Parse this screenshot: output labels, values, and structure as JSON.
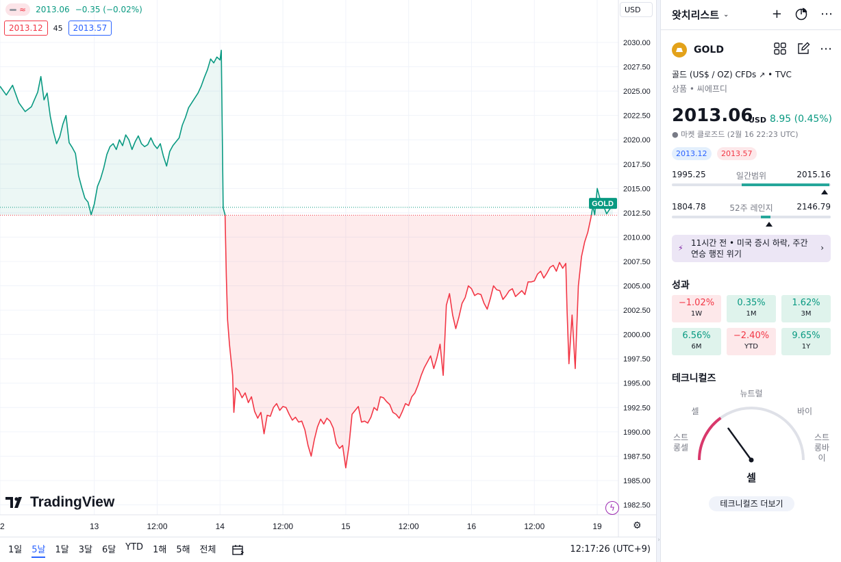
{
  "legend": {
    "price": "2013.06",
    "change": "−0.35 (−0.02%)",
    "bid": "2013.12",
    "spread": "45",
    "ask": "2013.57"
  },
  "currency_button": {
    "label": "USD"
  },
  "price_axis_tag": "GOLD",
  "logo_text": "TradingView",
  "bottom_bar": {
    "ranges": [
      "1일",
      "5날",
      "1달",
      "3달",
      "6달",
      "YTD",
      "1해",
      "5해",
      "전체"
    ],
    "active_range": "5날",
    "clock": "12:17:26 (UTC+9)"
  },
  "watchlist": {
    "title": "왓치리스트",
    "symbol": "GOLD",
    "description": "골드 (US$ / OZ) CFDs",
    "source": "TVC",
    "category": "상품 • 씨에프디",
    "price": "2013.06",
    "price_currency": "USD",
    "price_change": "8.95 (0.45%)",
    "market_status": "● 마켓 클로즈드 (2월 16 22:23 UTC)",
    "bid_badge": "2013.12",
    "ask_badge": "2013.57",
    "day_range": {
      "low": "1995.25",
      "label": "일간범위",
      "high": "2015.16",
      "fill_from": 0.44,
      "fill_to": 0.99,
      "marker": 0.96
    },
    "week52_range": {
      "low": "1804.78",
      "label": "52주 레인지",
      "high": "2146.79",
      "fill_from": 0.56,
      "fill_to": 0.62,
      "marker": 0.61
    },
    "news": "11시간 전 • 미국 증시 하락, 주간 연승 행진 위기",
    "performance_title": "성과",
    "performance": [
      {
        "value": "−1.02%",
        "label": "1W",
        "sign": "neg"
      },
      {
        "value": "0.35%",
        "label": "1M",
        "sign": "pos"
      },
      {
        "value": "1.62%",
        "label": "3M",
        "sign": "pos"
      },
      {
        "value": "6.56%",
        "label": "6M",
        "sign": "pos"
      },
      {
        "value": "−2.40%",
        "label": "YTD",
        "sign": "neg"
      },
      {
        "value": "9.65%",
        "label": "1Y",
        "sign": "pos"
      }
    ],
    "technicals_title": "테크니컬즈",
    "gauge": {
      "neutral": "뉴트럴",
      "sell": "셀",
      "buy": "바이",
      "strong_sell": "스트롱셀",
      "strong_buy": "스트롱바이",
      "result": "셀",
      "needle_level": 0.3
    },
    "more_button": "테크니컬즈 더보기"
  },
  "chart_data": {
    "type": "area",
    "symbol": "GOLD",
    "baseline": 2012.25,
    "last_price": 2013.06,
    "ylim": [
      1981.5,
      2032.5
    ],
    "y_ticks": [
      "2030.00",
      "2027.50",
      "2025.00",
      "2022.50",
      "2020.00",
      "2017.50",
      "2015.00",
      "2012.50",
      "2010.00",
      "2007.50",
      "2005.00",
      "2002.50",
      "2000.00",
      "1997.50",
      "1995.00",
      "1992.50",
      "1990.00",
      "1987.50",
      "1985.00",
      "1982.50"
    ],
    "x_ticks": [
      "2",
      "13",
      "12:00",
      "14",
      "12:00",
      "15",
      "12:00",
      "16",
      "12:00",
      "19"
    ],
    "x_tick_index": [
      -0.5,
      1.0,
      2.0,
      3.0,
      4.0,
      5.0,
      6.0,
      7.0,
      8.0,
      9.0
    ],
    "x_range": [
      -0.5,
      9.3
    ],
    "series": [
      {
        "points": [
          [
            -0.5,
            2025.5
          ],
          [
            -0.4,
            2024.6
          ],
          [
            -0.3,
            2025.6
          ],
          [
            -0.2,
            2023.8
          ],
          [
            -0.1,
            2022.9
          ],
          [
            0.0,
            2023.4
          ],
          [
            0.1,
            2024.9
          ],
          [
            0.15,
            2026.5
          ],
          [
            0.2,
            2024.1
          ],
          [
            0.25,
            2024.8
          ],
          [
            0.3,
            2022.4
          ],
          [
            0.35,
            2020.8
          ],
          [
            0.4,
            2019.6
          ],
          [
            0.45,
            2020.3
          ],
          [
            0.5,
            2021.6
          ],
          [
            0.55,
            2022.5
          ],
          [
            0.6,
            2019.7
          ],
          [
            0.65,
            2019.2
          ],
          [
            0.7,
            2018.6
          ],
          [
            0.75,
            2016.3
          ],
          [
            0.8,
            2015.1
          ],
          [
            0.85,
            2014.0
          ],
          [
            0.9,
            2013.6
          ],
          [
            0.95,
            2012.3
          ],
          [
            1.0,
            2013.4
          ],
          [
            1.05,
            2015.2
          ],
          [
            1.1,
            2016.0
          ],
          [
            1.15,
            2017.1
          ],
          [
            1.2,
            2018.5
          ],
          [
            1.25,
            2019.3
          ],
          [
            1.3,
            2019.6
          ],
          [
            1.35,
            2019.0
          ],
          [
            1.4,
            2020.0
          ],
          [
            1.45,
            2019.4
          ],
          [
            1.5,
            2020.5
          ],
          [
            1.55,
            2020.0
          ],
          [
            1.6,
            2019.0
          ],
          [
            1.65,
            2019.8
          ],
          [
            1.7,
            2020.4
          ],
          [
            1.75,
            2019.6
          ],
          [
            1.8,
            2019.3
          ],
          [
            1.85,
            2019.5
          ],
          [
            1.9,
            2020.2
          ],
          [
            1.95,
            2019.5
          ],
          [
            2.0,
            2019.1
          ],
          [
            2.05,
            2019.6
          ],
          [
            2.1,
            2018.3
          ],
          [
            2.15,
            2017.3
          ],
          [
            2.2,
            2018.8
          ],
          [
            2.25,
            2019.4
          ],
          [
            2.3,
            2019.8
          ],
          [
            2.35,
            2020.2
          ],
          [
            2.4,
            2021.5
          ],
          [
            2.45,
            2022.3
          ],
          [
            2.5,
            2023.3
          ],
          [
            2.55,
            2023.8
          ],
          [
            2.6,
            2024.3
          ],
          [
            2.65,
            2024.8
          ],
          [
            2.7,
            2025.5
          ],
          [
            2.75,
            2026.4
          ],
          [
            2.8,
            2027.2
          ],
          [
            2.85,
            2028.3
          ],
          [
            2.9,
            2027.9
          ],
          [
            2.95,
            2028.5
          ],
          [
            3.0,
            2028.2
          ],
          [
            3.02,
            2029.2
          ],
          [
            3.05,
            2013.0
          ],
          [
            3.08,
            2012.3
          ],
          [
            3.1,
            2006.0
          ],
          [
            3.12,
            2001.5
          ],
          [
            3.15,
            1999.0
          ],
          [
            3.2,
            1995.8
          ],
          [
            3.22,
            1992.0
          ],
          [
            3.25,
            1994.5
          ],
          [
            3.3,
            1994.2
          ],
          [
            3.35,
            1993.5
          ],
          [
            3.4,
            1994.0
          ],
          [
            3.45,
            1993.0
          ],
          [
            3.5,
            1993.6
          ],
          [
            3.55,
            1992.1
          ],
          [
            3.6,
            1991.4
          ],
          [
            3.65,
            1992.0
          ],
          [
            3.7,
            1989.8
          ],
          [
            3.75,
            1991.7
          ],
          [
            3.8,
            1991.6
          ],
          [
            3.85,
            1992.5
          ],
          [
            3.9,
            1992.9
          ],
          [
            3.95,
            1992.2
          ],
          [
            4.0,
            1992.6
          ],
          [
            4.05,
            1992.5
          ],
          [
            4.1,
            1991.8
          ],
          [
            4.15,
            1991.2
          ],
          [
            4.2,
            1991.5
          ],
          [
            4.25,
            1991.0
          ],
          [
            4.3,
            1991.1
          ],
          [
            4.35,
            1990.2
          ],
          [
            4.4,
            1988.6
          ],
          [
            4.45,
            1987.5
          ],
          [
            4.5,
            1989.2
          ],
          [
            4.55,
            1990.5
          ],
          [
            4.6,
            1991.3
          ],
          [
            4.65,
            1990.8
          ],
          [
            4.7,
            1991.4
          ],
          [
            4.75,
            1991.1
          ],
          [
            4.8,
            1990.4
          ],
          [
            4.85,
            1988.8
          ],
          [
            4.9,
            1988.3
          ],
          [
            4.95,
            1988.6
          ],
          [
            5.0,
            1986.3
          ],
          [
            5.05,
            1988.5
          ],
          [
            5.1,
            1991.8
          ],
          [
            5.15,
            1992.2
          ],
          [
            5.2,
            1992.6
          ],
          [
            5.25,
            1991.0
          ],
          [
            5.3,
            1991.1
          ],
          [
            5.35,
            1990.9
          ],
          [
            5.4,
            1991.5
          ],
          [
            5.45,
            1992.5
          ],
          [
            5.5,
            1992.2
          ],
          [
            5.55,
            1993.6
          ],
          [
            5.6,
            1993.5
          ],
          [
            5.65,
            1993.1
          ],
          [
            5.7,
            1992.8
          ],
          [
            5.75,
            1992.0
          ],
          [
            5.8,
            1991.8
          ],
          [
            5.85,
            1991.4
          ],
          [
            5.9,
            1992.1
          ],
          [
            5.95,
            1992.9
          ],
          [
            6.0,
            1992.7
          ],
          [
            6.05,
            1993.6
          ],
          [
            6.1,
            1994.0
          ],
          [
            6.15,
            1994.8
          ],
          [
            6.2,
            1995.8
          ],
          [
            6.25,
            1996.6
          ],
          [
            6.3,
            1997.2
          ],
          [
            6.35,
            1997.8
          ],
          [
            6.4,
            1996.5
          ],
          [
            6.45,
            1997.6
          ],
          [
            6.5,
            1999.0
          ],
          [
            6.55,
            1995.8
          ],
          [
            6.6,
            2003.0
          ],
          [
            6.65,
            2004.2
          ],
          [
            6.7,
            2002.0
          ],
          [
            6.75,
            2000.6
          ],
          [
            6.8,
            2001.8
          ],
          [
            6.85,
            2003.2
          ],
          [
            6.9,
            2003.8
          ],
          [
            6.95,
            2005.0
          ],
          [
            7.0,
            2004.7
          ],
          [
            7.05,
            2004.0
          ],
          [
            7.1,
            2004.2
          ],
          [
            7.15,
            2004.1
          ],
          [
            7.2,
            2003.2
          ],
          [
            7.25,
            2002.6
          ],
          [
            7.3,
            2003.7
          ],
          [
            7.35,
            2005.0
          ],
          [
            7.4,
            2004.6
          ],
          [
            7.45,
            2004.5
          ],
          [
            7.5,
            2003.6
          ],
          [
            7.55,
            2004.0
          ],
          [
            7.6,
            2004.5
          ],
          [
            7.65,
            2004.7
          ],
          [
            7.7,
            2003.9
          ],
          [
            7.75,
            2004.2
          ],
          [
            7.8,
            2004.5
          ],
          [
            7.85,
            2004.1
          ],
          [
            7.9,
            2005.4
          ],
          [
            7.95,
            2005.4
          ],
          [
            8.0,
            2005.5
          ],
          [
            8.05,
            2006.2
          ],
          [
            8.1,
            2006.5
          ],
          [
            8.15,
            2005.8
          ],
          [
            8.2,
            2006.3
          ],
          [
            8.25,
            2006.9
          ],
          [
            8.3,
            2007.1
          ],
          [
            8.35,
            2006.5
          ],
          [
            8.4,
            2007.4
          ],
          [
            8.45,
            2006.8
          ],
          [
            8.5,
            2007.3
          ],
          [
            8.52,
            2002.5
          ],
          [
            8.55,
            1997.0
          ],
          [
            8.6,
            2002.0
          ],
          [
            8.65,
            1996.5
          ],
          [
            8.7,
            2005.0
          ],
          [
            8.75,
            2008.0
          ],
          [
            8.8,
            2009.5
          ],
          [
            8.85,
            2010.5
          ],
          [
            8.9,
            2012.0
          ],
          [
            8.93,
            2013.2
          ],
          [
            8.96,
            2012.3
          ],
          [
            9.0,
            2015.0
          ],
          [
            9.05,
            2013.8
          ],
          [
            9.1,
            2013.2
          ],
          [
            9.15,
            2012.4
          ],
          [
            9.2,
            2012.9
          ],
          [
            9.25,
            2013.06
          ]
        ]
      }
    ]
  }
}
